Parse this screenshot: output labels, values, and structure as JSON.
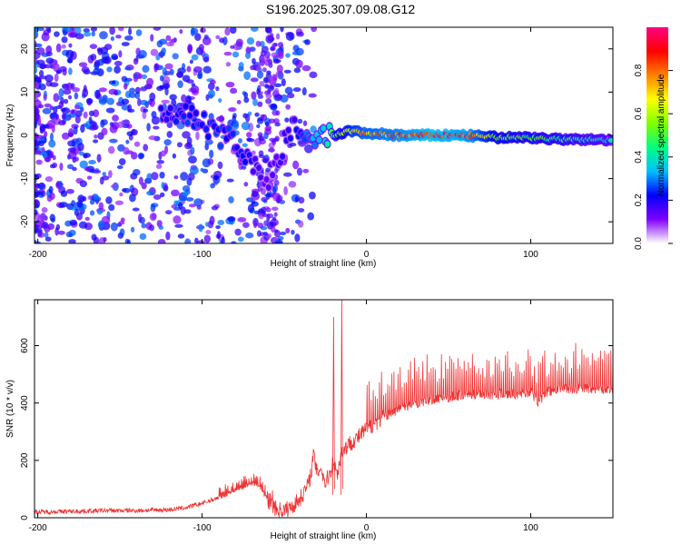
{
  "title": "S196.2025.307.09.08.G12",
  "chart_data": [
    {
      "type": "heatmap",
      "xlabel": "Height of straight line (km)",
      "ylabel": "Frequency (Hz)",
      "xlim": [
        -202,
        150
      ],
      "ylim": [
        -25,
        25
      ],
      "xticks": [
        -200,
        -100,
        0,
        100
      ],
      "yticks": [
        -20,
        -10,
        0,
        10,
        20
      ],
      "colorbar": {
        "label": "Normalized spectral amplitude",
        "range": [
          0,
          1
        ],
        "ticks": [
          "0.0",
          "0.2",
          "0.4",
          "0.6",
          "0.8"
        ],
        "colors": [
          "#ffffff",
          "#8000ff",
          "#0000ff",
          "#00c0ff",
          "#00ff80",
          "#80ff00",
          "#ffff00",
          "#ff8000",
          "#ff0000",
          "#ff0080"
        ]
      },
      "ridge": [
        {
          "x": -125,
          "y": 5,
          "amp": 0.2
        },
        {
          "x": -110,
          "y": 5,
          "amp": 0.25
        },
        {
          "x": -100,
          "y": 3,
          "amp": 0.25
        },
        {
          "x": -90,
          "y": 0,
          "amp": 0.25
        },
        {
          "x": -80,
          "y": -1,
          "amp": 0.25
        },
        {
          "x": -70,
          "y": -6,
          "amp": 0.2
        },
        {
          "x": -62,
          "y": -12,
          "amp": 0.15
        },
        {
          "x": -45,
          "y": 2,
          "amp": 0.2
        },
        {
          "x": -40,
          "y": 0,
          "amp": 0.25
        },
        {
          "x": -35,
          "y": -2,
          "amp": 0.3
        },
        {
          "x": -30,
          "y": -1,
          "amp": 0.35
        },
        {
          "x": -20,
          "y": 0,
          "amp": 0.5
        },
        {
          "x": -10,
          "y": 1,
          "amp": 0.7
        },
        {
          "x": 0,
          "y": 0.5,
          "amp": 0.8
        },
        {
          "x": 20,
          "y": 0,
          "amp": 0.85
        },
        {
          "x": 40,
          "y": 0,
          "amp": 0.95
        },
        {
          "x": 60,
          "y": 0,
          "amp": 0.9
        },
        {
          "x": 80,
          "y": -0.5,
          "amp": 0.6
        },
        {
          "x": 100,
          "y": -0.5,
          "amp": 0.55
        },
        {
          "x": 120,
          "y": -1,
          "amp": 0.5
        },
        {
          "x": 150,
          "y": -1,
          "amp": 0.4
        }
      ]
    },
    {
      "type": "line",
      "xlabel": "Height of straight line (km)",
      "ylabel": "SNR (10 * v/v)",
      "xlim": [
        -202,
        150
      ],
      "ylim": [
        0,
        760
      ],
      "xticks": [
        -200,
        -100,
        0,
        100
      ],
      "yticks": [
        0,
        200,
        400,
        600
      ],
      "color": "#ee3333",
      "series": [
        {
          "name": "SNR",
          "x": [
            -202,
            -180,
            -160,
            -140,
            -120,
            -110,
            -100,
            -90,
            -80,
            -70,
            -65,
            -60,
            -55,
            -50,
            -45,
            -40,
            -35,
            -32,
            -30,
            -28,
            -25,
            -22,
            -20,
            -18,
            -15,
            -12,
            -10,
            -5,
            0,
            5,
            10,
            20,
            30,
            40,
            50,
            60,
            70,
            80,
            90,
            100,
            105,
            110,
            120,
            130,
            140,
            150
          ],
          "y": [
            20,
            22,
            25,
            25,
            28,
            35,
            50,
            70,
            95,
            120,
            110,
            60,
            30,
            25,
            40,
            70,
            120,
            220,
            150,
            180,
            120,
            160,
            200,
            150,
            230,
            250,
            260,
            280,
            310,
            330,
            350,
            380,
            400,
            410,
            420,
            430,
            430,
            430,
            430,
            440,
            400,
            440,
            450,
            450,
            450,
            450
          ]
        }
      ],
      "spikes": [
        {
          "x": -20,
          "y": 700
        },
        {
          "x": -15,
          "y": 760
        }
      ]
    }
  ]
}
